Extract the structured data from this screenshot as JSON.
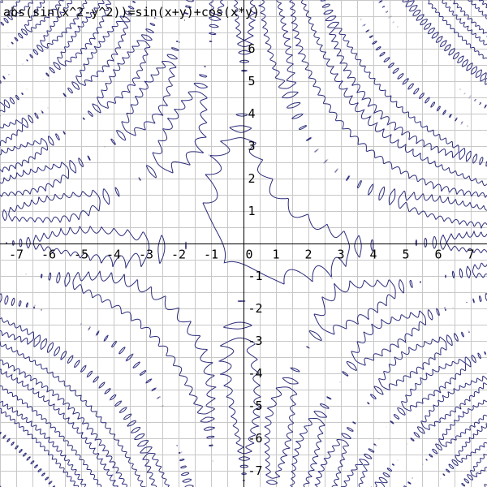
{
  "chart_data": {
    "type": "implicit-curve",
    "title": "abs(sin(x^2-y^2))=sin(x+y)+cos(x*y)",
    "expression": "abs(sin(x^2-y^2))=sin(x+y)+cos(x*y)",
    "xlim": [
      -7.5,
      7.5
    ],
    "ylim": [
      -7.5,
      7.5
    ],
    "x_ticks": [
      -7,
      -6,
      -5,
      -4,
      -3,
      -2,
      -1,
      0,
      1,
      2,
      3,
      4,
      5,
      6,
      7
    ],
    "y_ticks": [
      -7,
      -6,
      -5,
      -4,
      -3,
      -2,
      -1,
      1,
      2,
      3,
      4,
      5,
      6
    ],
    "grid_step": 0.5,
    "grid": true,
    "curve_color": "#2a2a7a",
    "grid_color": "#c8c8c8",
    "axis_color": "#000000"
  }
}
